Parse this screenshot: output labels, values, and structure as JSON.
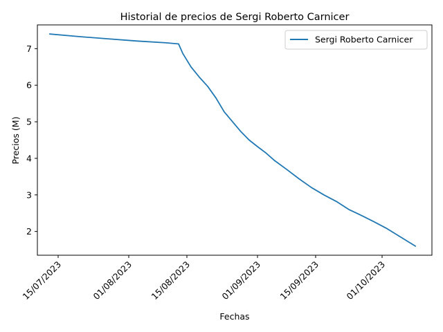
{
  "chart_data": {
    "type": "line",
    "title": "Historial de precios de Sergi Roberto Carnicer",
    "xlabel": "Fechas",
    "ylabel": "Precios (M)",
    "x_tick_labels": [
      "15/07/2023",
      "01/08/2023",
      "15/08/2023",
      "01/09/2023",
      "15/09/2023",
      "01/10/2023"
    ],
    "x_tick_dates": [
      "2023-07-15",
      "2023-08-01",
      "2023-08-15",
      "2023-09-01",
      "2023-09-15",
      "2023-10-01"
    ],
    "y_ticks": [
      2,
      3,
      4,
      5,
      6,
      7
    ],
    "xlim": [
      "2023-07-10",
      "2023-10-13"
    ],
    "ylim": [
      1.35,
      7.65
    ],
    "grid": false,
    "legend_position": "top-right",
    "colors": {
      "series": "#1f77b4"
    },
    "series": [
      {
        "name": "Sergi Roberto Carnicer",
        "x": [
          "2023-07-13",
          "2023-07-20",
          "2023-07-27",
          "2023-08-03",
          "2023-08-10",
          "2023-08-13",
          "2023-08-14",
          "2023-08-16",
          "2023-08-18",
          "2023-08-20",
          "2023-08-22",
          "2023-08-24",
          "2023-08-26",
          "2023-08-28",
          "2023-08-30",
          "2023-09-01",
          "2023-09-03",
          "2023-09-05",
          "2023-09-08",
          "2023-09-11",
          "2023-09-14",
          "2023-09-17",
          "2023-09-20",
          "2023-09-23",
          "2023-09-26",
          "2023-09-29",
          "2023-10-02",
          "2023-10-05",
          "2023-10-09"
        ],
        "y": [
          7.4,
          7.33,
          7.27,
          7.21,
          7.16,
          7.13,
          6.87,
          6.5,
          6.22,
          5.97,
          5.65,
          5.27,
          5.0,
          4.73,
          4.5,
          4.32,
          4.15,
          3.95,
          3.7,
          3.44,
          3.2,
          3.0,
          2.82,
          2.6,
          2.44,
          2.27,
          2.09,
          1.88,
          1.6
        ]
      }
    ]
  }
}
